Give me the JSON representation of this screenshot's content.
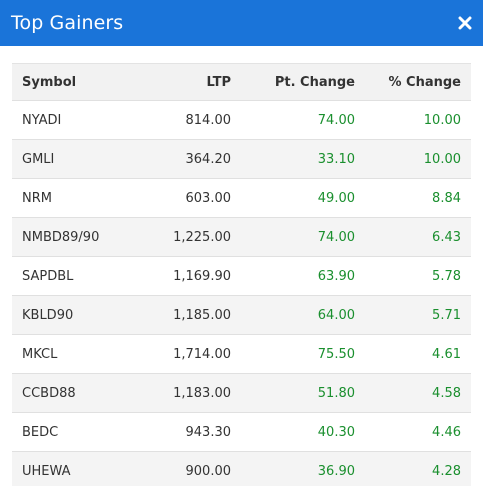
{
  "header": {
    "title": "Top Gainers",
    "close_icon": "close-icon"
  },
  "table": {
    "columns": [
      "Symbol",
      "LTP",
      "Pt. Change",
      "% Change"
    ],
    "rows": [
      {
        "symbol": "NYADI",
        "ltp": "814.00",
        "pt_change": "74.00",
        "pct_change": "10.00"
      },
      {
        "symbol": "GMLI",
        "ltp": "364.20",
        "pt_change": "33.10",
        "pct_change": "10.00"
      },
      {
        "symbol": "NRM",
        "ltp": "603.00",
        "pt_change": "49.00",
        "pct_change": "8.84"
      },
      {
        "symbol": "NMBD89/90",
        "ltp": "1,225.00",
        "pt_change": "74.00",
        "pct_change": "6.43"
      },
      {
        "symbol": "SAPDBL",
        "ltp": "1,169.90",
        "pt_change": "63.90",
        "pct_change": "5.78"
      },
      {
        "symbol": "KBLD90",
        "ltp": "1,185.00",
        "pt_change": "64.00",
        "pct_change": "5.71"
      },
      {
        "symbol": "MKCL",
        "ltp": "1,714.00",
        "pt_change": "75.50",
        "pct_change": "4.61"
      },
      {
        "symbol": "CCBD88",
        "ltp": "1,183.00",
        "pt_change": "51.80",
        "pct_change": "4.58"
      },
      {
        "symbol": "BEDC",
        "ltp": "943.30",
        "pt_change": "40.30",
        "pct_change": "4.46"
      },
      {
        "symbol": "UHEWA",
        "ltp": "900.00",
        "pt_change": "36.90",
        "pct_change": "4.28"
      }
    ]
  },
  "colors": {
    "header_bg": "#1a74d9",
    "positive": "#1a8f2e"
  }
}
